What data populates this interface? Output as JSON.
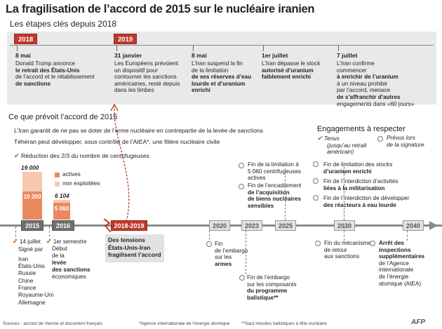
{
  "title": "La fragilisation de l’accord de 2015 sur le nucléaire iranien",
  "subtitle": "Les étapes clés depuis 2018",
  "top_years": [
    "2018",
    "2019"
  ],
  "top_events": [
    {
      "date": "8 mai",
      "l1": "Donald Trump annonce",
      "l2": "le retrait des États-Unis",
      "l3": "de l’accord et le rétablissement",
      "l4": "de sanctions"
    },
    {
      "date": "31 janvier",
      "l1": "Les Européens prévoient",
      "l2": "un dispositif pour",
      "l3": "contourner les sanctions",
      "l4": "américaines, resté depuis",
      "l5": "dans les limbes"
    },
    {
      "date": "8 mai",
      "l1": "L’Iran suspend la fin",
      "l2": "de la limitation",
      "l3": "de ses réserves d’eau",
      "l4": "lourde et d’uranium",
      "l5": "enrichi"
    },
    {
      "date": "1er juillet",
      "l1": "L’Iran dépasse le stock",
      "l2": "autorisé d’uranium",
      "l3": "faiblement enrichi"
    },
    {
      "date": "7 juillet",
      "l1": "L’Iran confirme",
      "l2": "commencer",
      "l3": "à enrichir de l’uranium",
      "l4": "à un niveau prohibé",
      "l5": "par l’accord, menace",
      "l6": "de s’affranchir d’autres",
      "l7": "engagements dans «60 jours»"
    }
  ],
  "accord": {
    "heading": "Ce que prévoit l’accord de 2015",
    "line1": "L’Iran garantit de ne pas se doter de l’arme nucléaire en contrepartie de la levée de sanctions",
    "line2": "Téhéran peut développer, sous contrôle de l’AIEA*, une filière nucléaire civile",
    "centrifuges": "Réduction des 2/3 du nombre de centrifugeuses"
  },
  "bars": {
    "total_2015": "19 000",
    "active_2015": "10 200",
    "total_2016": "6 104",
    "active_2016": "5 060",
    "legend_active": "actives",
    "legend_inactive": "non exploitées"
  },
  "engagements": {
    "heading": "Engagements à respecter",
    "tenus": "Tenus",
    "tenus_note1": "(jusqu’au retrait",
    "tenus_note2": "américain)",
    "prevus": "Prévus lors",
    "prevus_note": "de la signature",
    "items": [
      {
        "l1": "Fin de limitation des stocks",
        "l2": "d’uranium enrichi"
      },
      {
        "l1": "Fin de l’interdiction d’activités",
        "l2": "liées à la militarisation"
      },
      {
        "l1": "Fin de l’interdiction de développer",
        "l2": "des réacteurs à eau lourde"
      }
    ]
  },
  "timeline_years": [
    "2015",
    "2016",
    "2018-2019",
    "2020",
    "2023",
    "2025",
    "2030",
    "2040"
  ],
  "tensions": {
    "l1": "Des tensions",
    "l2": "États-Unis-Iran",
    "l3": "fragilisent l’accord"
  },
  "below": {
    "y2015": {
      "date": "14 juillet",
      "signed": "Signé par",
      "parties": [
        "Iran",
        "États-Unis",
        "Russie",
        "Chine",
        "France",
        "Royaume-Uni",
        "Allemagne"
      ]
    },
    "y2016": {
      "date": "1er semestre",
      "l1": "Début",
      "l2": "de la",
      "l3": "levée",
      "l4": "des sanctions",
      "l5": "économiques"
    },
    "y2020": {
      "l1": "Fin",
      "l2": "de l’embargo",
      "l3": "sur les",
      "l4": "armes"
    },
    "y2023": {
      "l1": "Fin de l’embargo",
      "l2": "sur les composants",
      "l3": "du programme",
      "l4": "balistique**"
    },
    "y2025_top": {
      "l1": "Fin de la limitation à",
      "l2": "5 060 centrifugeuses",
      "l3": "actives",
      "l4": "Fin de l’encadrement",
      "l5": "de l’acquisition",
      "l6": "de biens nucléaires",
      "l7": "sensibles"
    },
    "y2030": {
      "l1": "Fin du mécanisme",
      "l2": "de retour",
      "l3": "aux sanctions"
    },
    "y2040": {
      "l1": "Arrêt des",
      "l2": "inspections",
      "l3": "supplémentaires",
      "l4": "de l’Agence",
      "l5": "internationale",
      "l6": "de l’énergie",
      "l7": "atomique (AIEA)"
    }
  },
  "footer": {
    "sources": "Sources : accord de Vienne et document français",
    "note1": "*Agence internationale de l’énergie atomique",
    "note2": "**Saut missiles balistiques à tête nucléaire",
    "logo": "AFP"
  },
  "colors": {
    "red": "#c0392b",
    "orange": "#e98a5e",
    "light_orange": "#f6c8b0",
    "grey_band": "#e9e9e9"
  }
}
